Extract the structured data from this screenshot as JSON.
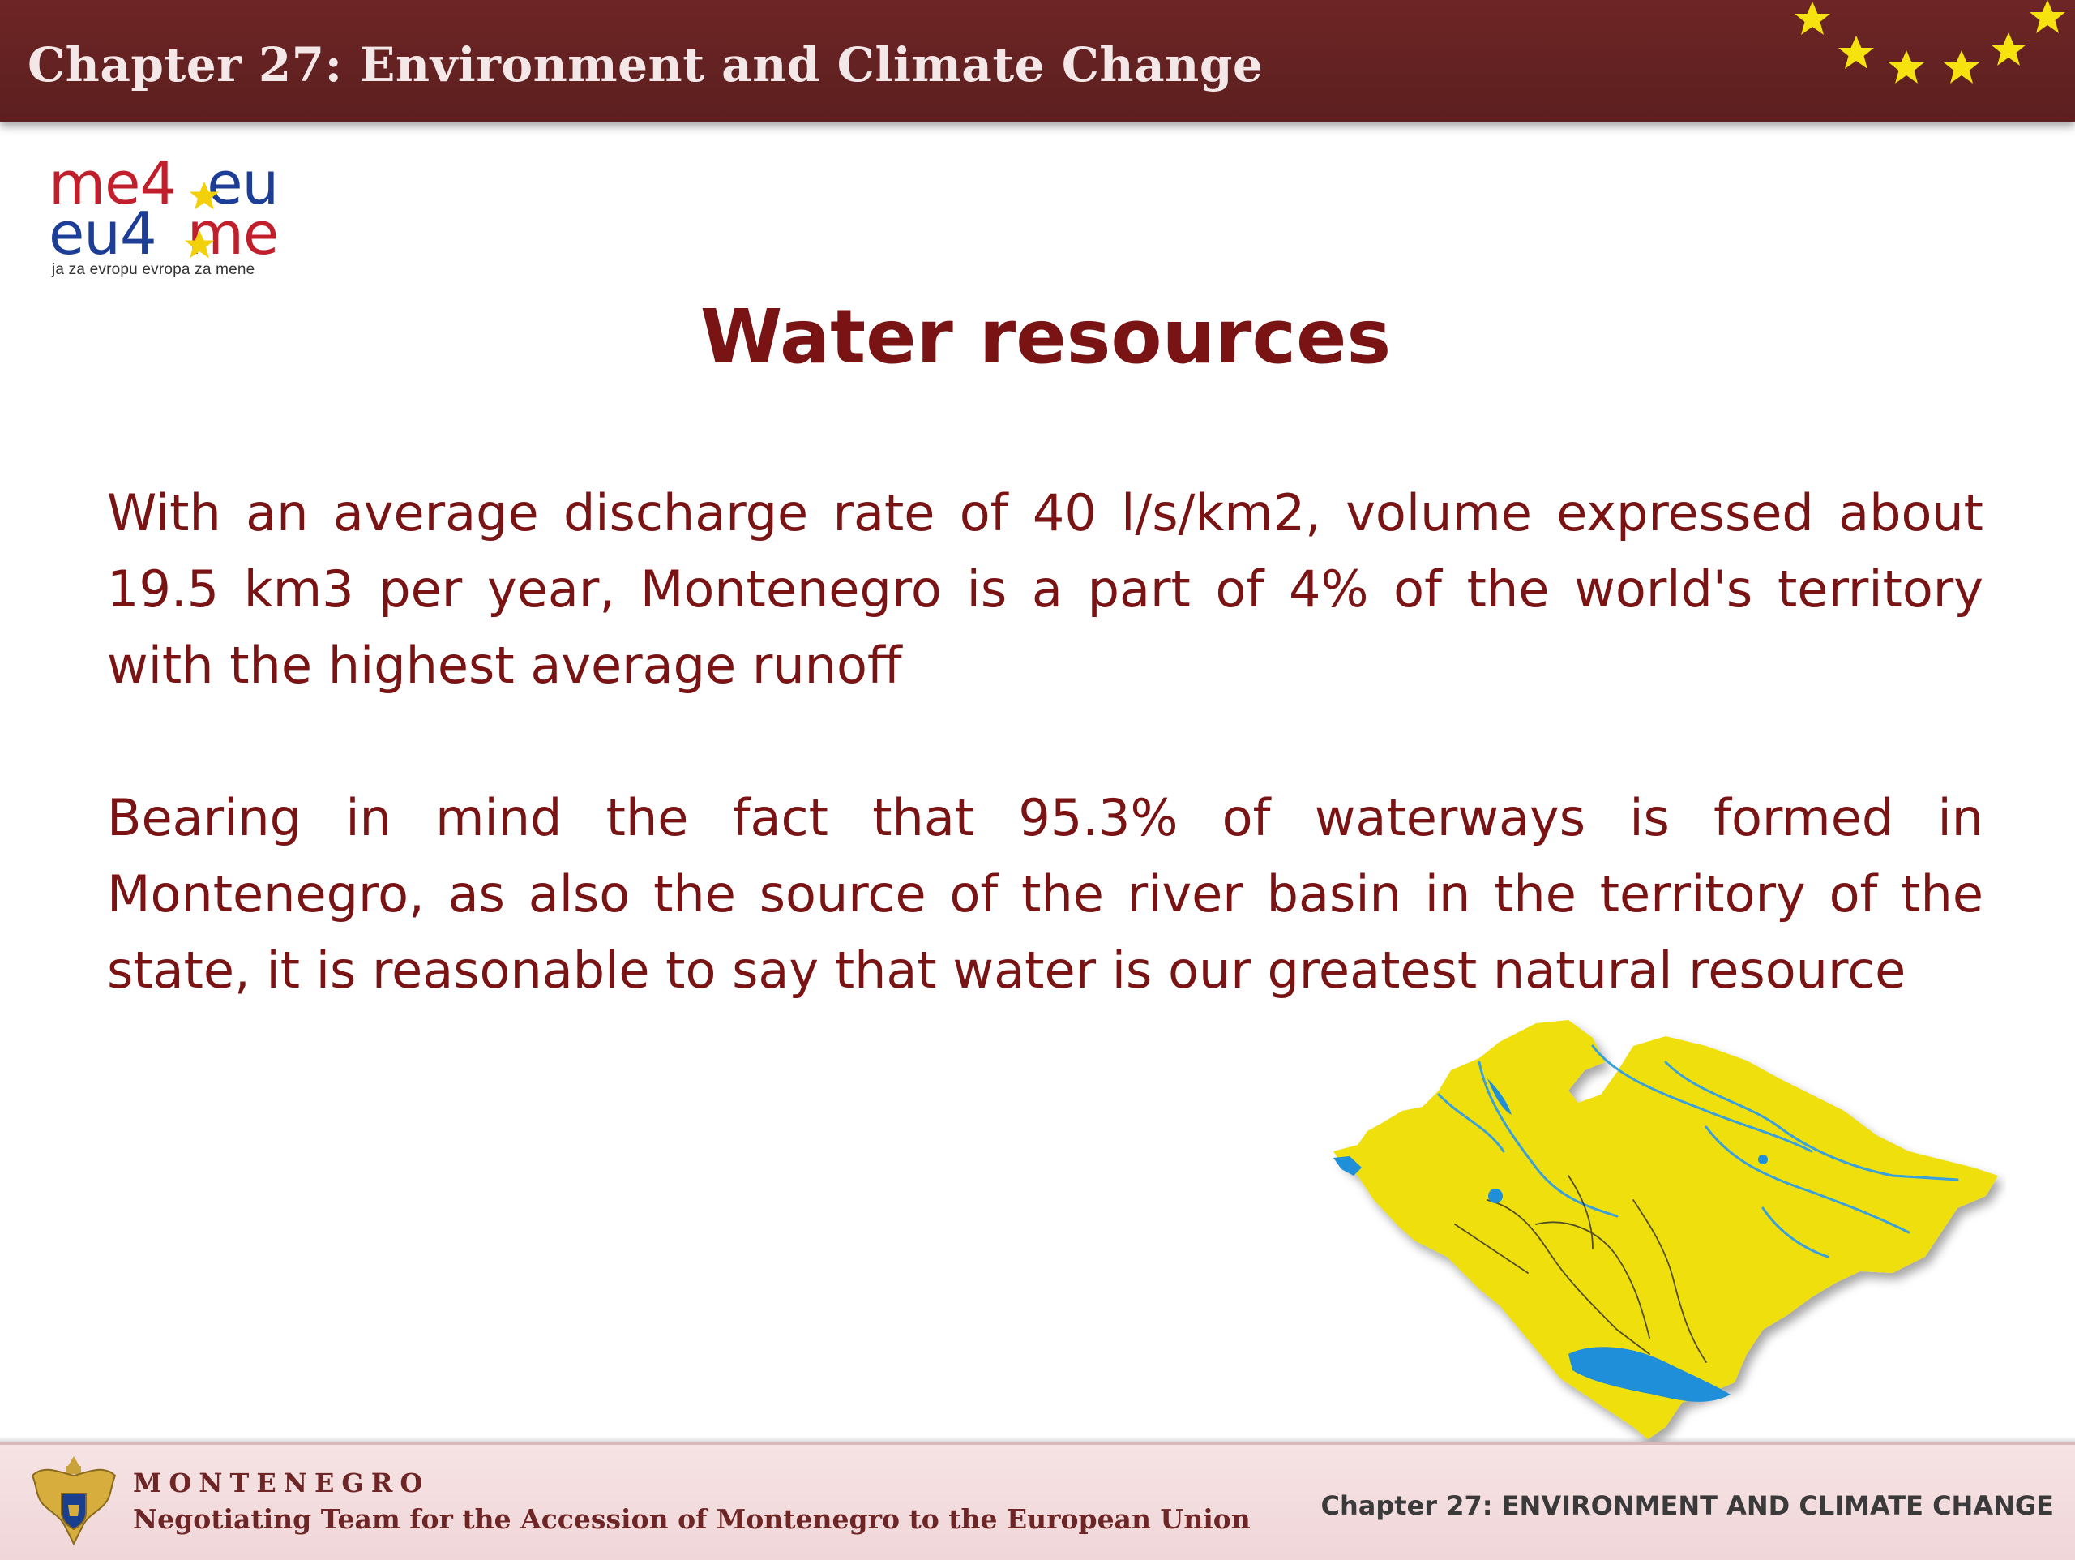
{
  "header": {
    "title": "Chapter 27: Environment and Climate Change",
    "decoration": "eu-stars-icon"
  },
  "logo": {
    "line1_a": "me4",
    "line1_b": "eu",
    "line2_a": "eu4",
    "line2_b": "me",
    "tagline": "ja za evropu evropa za mene",
    "colors": {
      "red": "#c01f2b",
      "blue": "#1d3e97",
      "star": "#f2d10a"
    }
  },
  "slide": {
    "title": "Water resources",
    "paragraphs": [
      "With an average discharge rate of 40 l/s/km2, volume expressed about 19.5 km3 per year, Montenegro is a part of  4% of the world's territory with the highest average runoff",
      "Bearing in mind the fact that 95.3% of waterways is formed in Montenegro, as also  the source of the river basin in the territory of the state, it is reasonable to say that water is our greatest natural resource"
    ],
    "map_icon": "montenegro-water-map",
    "colors": {
      "text": "#7a1414",
      "map_land": "#f0e010",
      "map_water": "#2ca0e0"
    }
  },
  "footer": {
    "country": "MONTENEGRO",
    "team": "Negotiating Team for the Accession of  Montenegro to the European Union",
    "chapter": "Chapter 27:  ENVIRONMENT AND CLIMATE CHANGE",
    "emblem": "coat-of-arms-icon"
  }
}
